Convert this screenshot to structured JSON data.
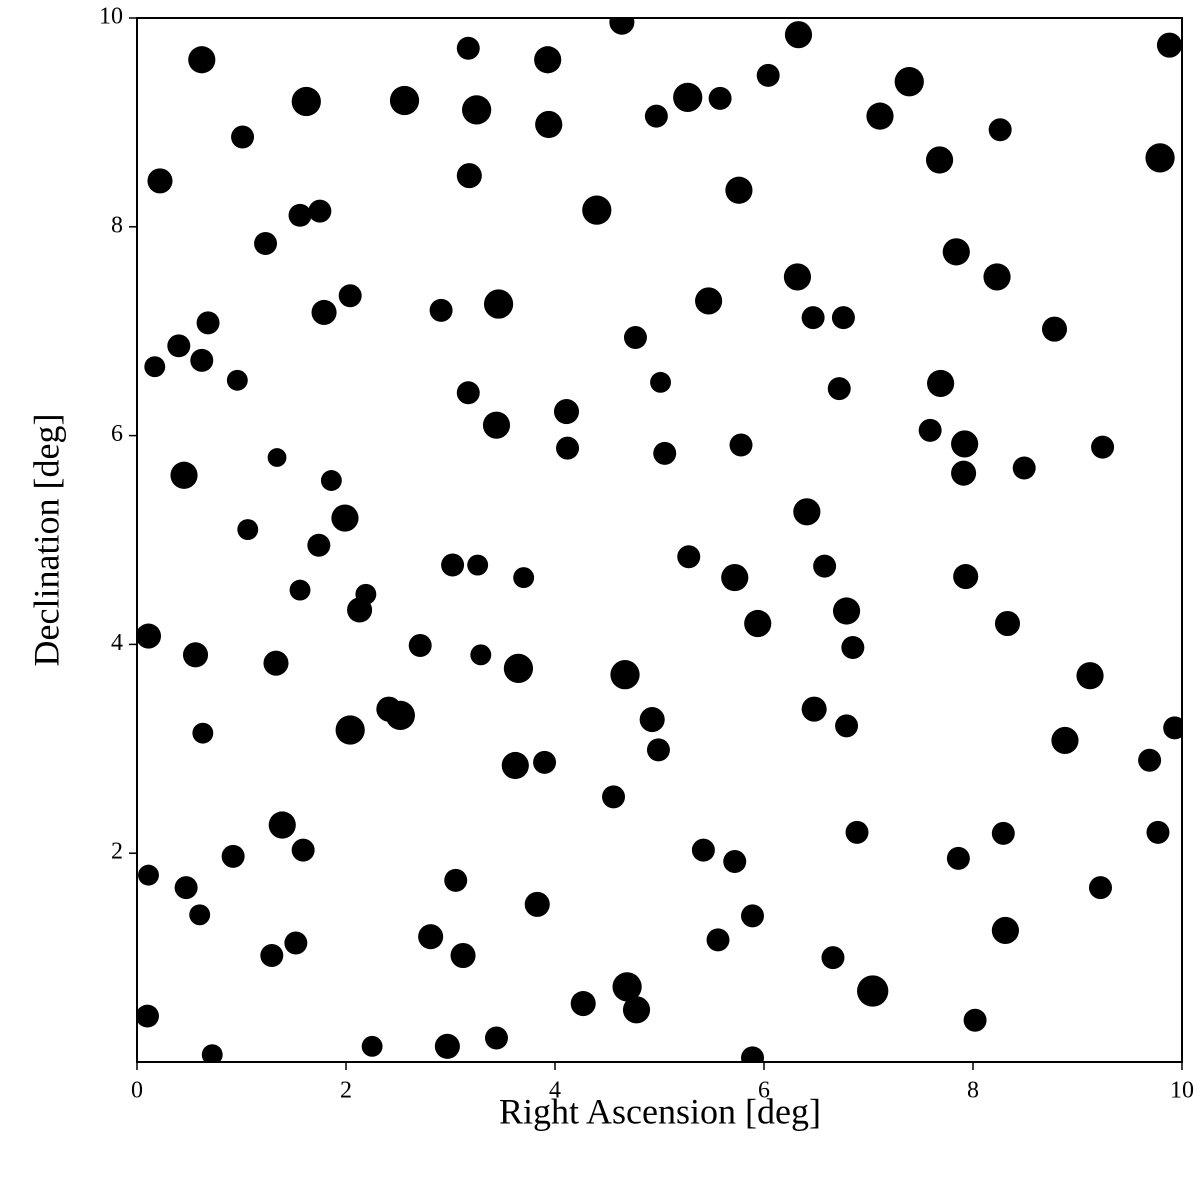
{
  "chart_data": {
    "type": "scatter",
    "x_label": "Right Ascension [deg]",
    "y_label": "Declination [deg]",
    "color": "#000000",
    "xlim": [
      0,
      10
    ],
    "ylim": [
      0,
      10
    ],
    "xticks": [
      0,
      2,
      4,
      6,
      8,
      10
    ],
    "yticks": [
      2,
      4,
      6,
      8,
      10
    ],
    "x": [
      0.62,
      1.62,
      2.56,
      0.22,
      1.01,
      1.56,
      1.23,
      0.68,
      0.17,
      0.62,
      0.96,
      0.45,
      1.06,
      1.34,
      1.99,
      1.86,
      1.74,
      1.56,
      0.11,
      0.56,
      1.33,
      2.04,
      2.52,
      0.63,
      1.39,
      1.59,
      0.92,
      0.47,
      0.11,
      1.29,
      1.52,
      0.6,
      0.1,
      0.72,
      2.25,
      2.97,
      3.44,
      2.81,
      3.12,
      3.05,
      3.83,
      3.62,
      3.65,
      3.29,
      3.02,
      3.26,
      2.71,
      2.13,
      3.17,
      3.44,
      3.46,
      3.18,
      3.25,
      3.17,
      3.93,
      3.94,
      4.4,
      4.97,
      4.64,
      5.27,
      5.47,
      4.77,
      5.01,
      4.11,
      4.12,
      4.67,
      4.56,
      4.99,
      4.69,
      4.78,
      4.27,
      5.89,
      7.04,
      6.66,
      5.89,
      5.56,
      5.42,
      5.72,
      5.72,
      5.94,
      5.28,
      5.78,
      5.05,
      5.76,
      5.58,
      6.33,
      6.32,
      6.47,
      6.76,
      6.72,
      6.41,
      6.58,
      6.79,
      6.85,
      6.48,
      6.79,
      6.89,
      7.39,
      7.68,
      7.84,
      8.23,
      8.78,
      9.79,
      9.88,
      9.24,
      8.49,
      7.92,
      7.69,
      7.91,
      7.93,
      9.12,
      8.88,
      9.69,
      9.93,
      9.77,
      8.29,
      7.86,
      8.31,
      8.02,
      9.22,
      8.33,
      7.59,
      8.26,
      7.11,
      6.04,
      2.91,
      2.04,
      1.79,
      1.75,
      2.41,
      3.9,
      4.93,
      3.7,
      2.19,
      0.4
    ],
    "values": [
      9.6,
      9.2,
      9.21,
      8.44,
      8.86,
      8.11,
      7.84,
      7.08,
      6.66,
      6.72,
      6.53,
      5.62,
      5.1,
      5.79,
      5.21,
      5.57,
      4.95,
      4.52,
      4.08,
      3.9,
      3.82,
      3.18,
      3.32,
      3.15,
      2.27,
      2.03,
      1.97,
      1.67,
      1.79,
      1.02,
      1.14,
      1.41,
      0.44,
      0.07,
      0.15,
      0.15,
      0.23,
      1.2,
      1.02,
      1.74,
      1.51,
      2.84,
      3.77,
      3.9,
      4.76,
      4.76,
      3.99,
      4.33,
      6.41,
      6.1,
      7.26,
      8.49,
      9.12,
      9.71,
      9.6,
      8.98,
      8.16,
      9.06,
      9.96,
      9.24,
      7.29,
      6.94,
      6.51,
      6.23,
      5.88,
      3.71,
      2.54,
      2.99,
      0.72,
      0.5,
      0.56,
      0.04,
      0.68,
      1.0,
      1.4,
      1.17,
      2.03,
      1.92,
      4.64,
      4.2,
      4.84,
      5.91,
      5.83,
      8.35,
      9.23,
      9.84,
      7.52,
      7.13,
      7.13,
      6.45,
      5.27,
      4.75,
      4.32,
      3.97,
      3.38,
      3.22,
      2.2,
      9.39,
      8.64,
      7.76,
      7.52,
      7.02,
      8.66,
      9.74,
      5.89,
      5.69,
      5.92,
      6.5,
      5.64,
      4.65,
      3.7,
      3.08,
      2.89,
      3.2,
      2.2,
      2.19,
      1.95,
      1.26,
      0.4,
      1.67,
      4.2,
      6.05,
      8.93,
      9.06,
      9.45,
      7.2,
      7.34,
      7.18,
      8.15,
      3.38,
      2.87,
      3.28,
      4.64,
      4.48,
      6.86
    ],
    "sizes": [
      0.13,
      0.14,
      0.14,
      0.12,
      0.11,
      0.11,
      0.11,
      0.11,
      0.1,
      0.11,
      0.1,
      0.13,
      0.1,
      0.09,
      0.13,
      0.1,
      0.11,
      0.1,
      0.12,
      0.12,
      0.12,
      0.14,
      0.14,
      0.1,
      0.13,
      0.11,
      0.11,
      0.11,
      0.1,
      0.11,
      0.11,
      0.1,
      0.11,
      0.1,
      0.1,
      0.12,
      0.11,
      0.12,
      0.12,
      0.11,
      0.12,
      0.13,
      0.14,
      0.1,
      0.11,
      0.1,
      0.11,
      0.12,
      0.11,
      0.13,
      0.14,
      0.12,
      0.14,
      0.11,
      0.13,
      0.13,
      0.14,
      0.11,
      0.12,
      0.14,
      0.13,
      0.11,
      0.1,
      0.12,
      0.11,
      0.14,
      0.11,
      0.11,
      0.14,
      0.13,
      0.12,
      0.11,
      0.15,
      0.11,
      0.11,
      0.11,
      0.11,
      0.11,
      0.13,
      0.13,
      0.11,
      0.11,
      0.11,
      0.13,
      0.11,
      0.13,
      0.13,
      0.11,
      0.11,
      0.11,
      0.13,
      0.11,
      0.13,
      0.11,
      0.12,
      0.11,
      0.11,
      0.14,
      0.13,
      0.13,
      0.13,
      0.12,
      0.14,
      0.12,
      0.11,
      0.11,
      0.13,
      0.13,
      0.12,
      0.12,
      0.13,
      0.13,
      0.11,
      0.11,
      0.11,
      0.11,
      0.11,
      0.13,
      0.11,
      0.11,
      0.12,
      0.11,
      0.11,
      0.13,
      0.11,
      0.11,
      0.11,
      0.12,
      0.11,
      0.12,
      0.11,
      0.12,
      0.1,
      0.1,
      0.11
    ]
  }
}
